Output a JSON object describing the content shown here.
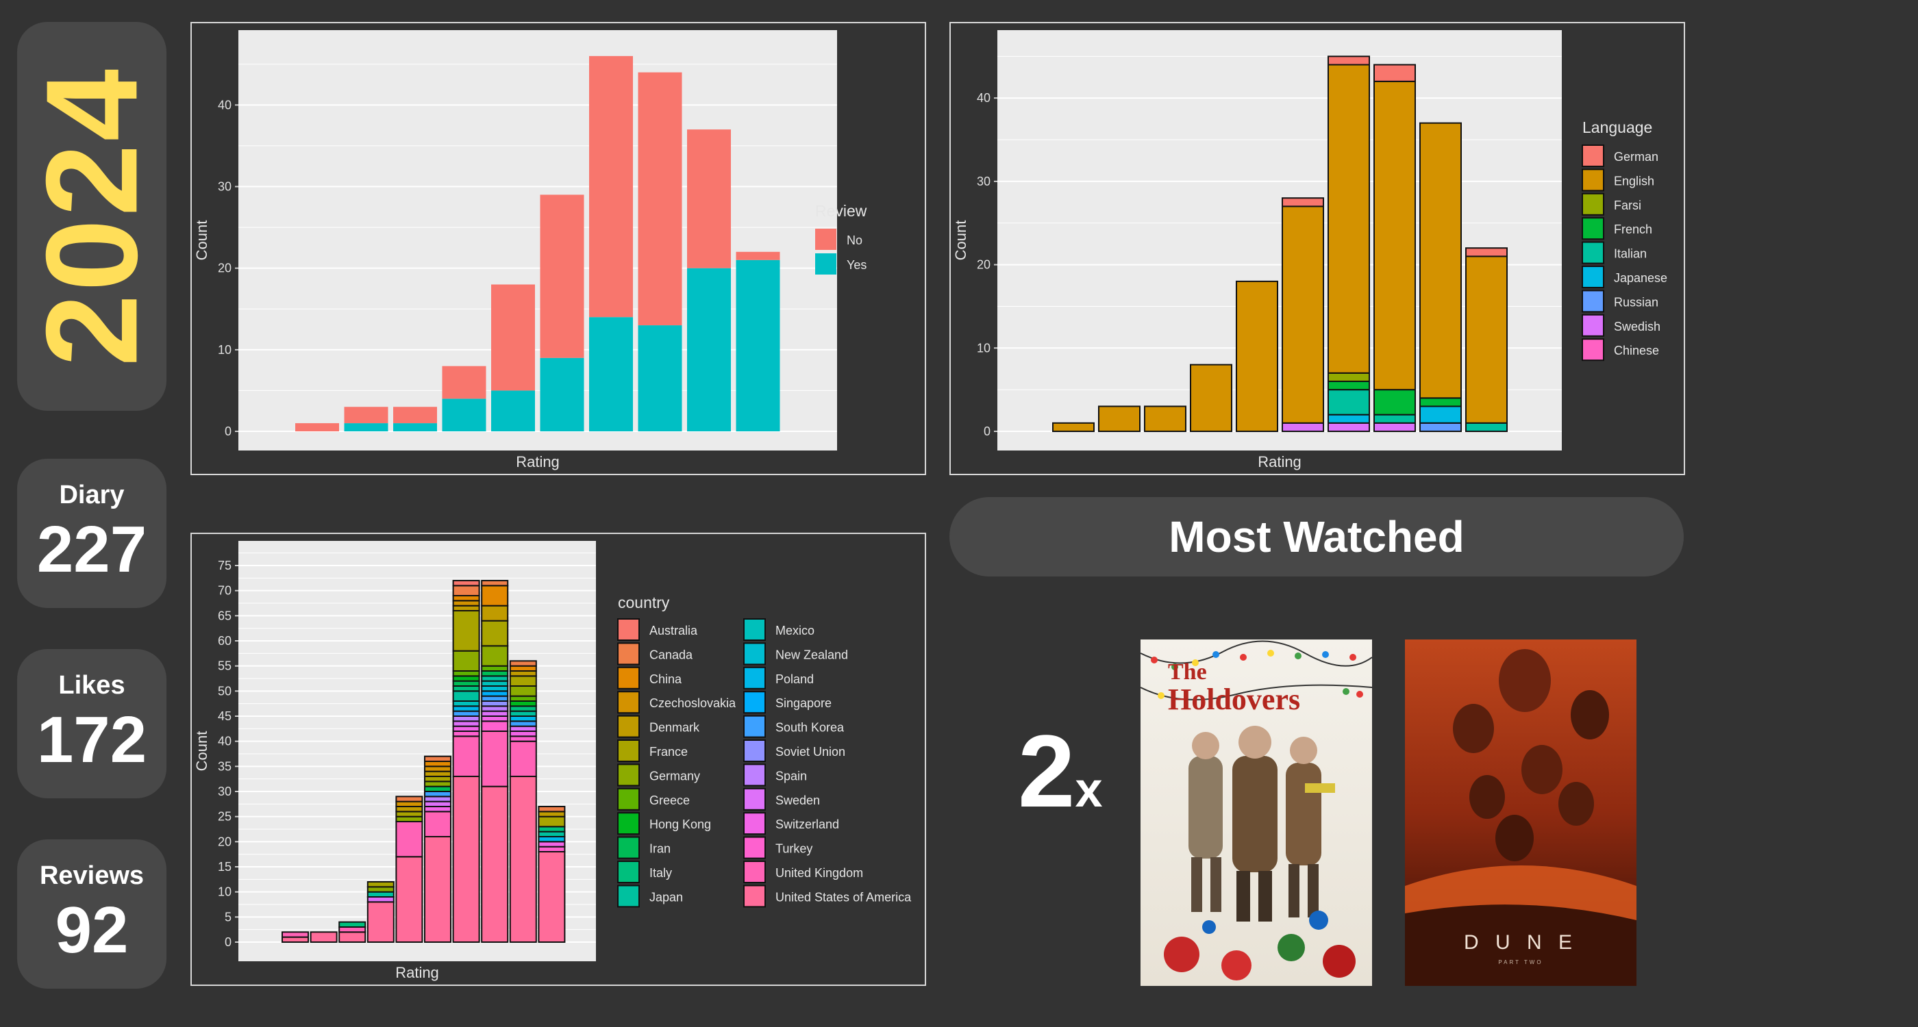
{
  "year": "2024",
  "stats": [
    {
      "label": "Diary",
      "value": "227"
    },
    {
      "label": "Likes",
      "value": "172"
    },
    {
      "label": "Reviews",
      "value": "92"
    }
  ],
  "most_watched": {
    "title": "Most Watched",
    "count_number": "2",
    "count_suffix": "x",
    "posters": [
      {
        "title_line1": "The",
        "title_line2": "Holdovers"
      },
      {
        "title": "D U N E",
        "subtitle": "PART TWO"
      }
    ]
  },
  "chart_data": [
    {
      "type": "bar",
      "stacked": true,
      "xlabel": "Rating",
      "ylabel": "Count",
      "ylim": [
        0,
        48
      ],
      "yticks": [
        0,
        10,
        20,
        30,
        40
      ],
      "legend": {
        "title": "Review",
        "placement": "right"
      },
      "series": [
        {
          "name": "No",
          "color": "#F8766D",
          "values": [
            1,
            2,
            2,
            4,
            13,
            20,
            32,
            31,
            17,
            1
          ]
        },
        {
          "name": "Yes",
          "color": "#00BFC4",
          "values": [
            0,
            1,
            1,
            4,
            5,
            9,
            14,
            13,
            20,
            21
          ]
        }
      ]
    },
    {
      "type": "bar",
      "stacked": true,
      "xlabel": "Rating",
      "ylabel": "Count",
      "ylim": [
        0,
        47
      ],
      "yticks": [
        0,
        10,
        20,
        30,
        40
      ],
      "legend": {
        "title": "Language",
        "placement": "right"
      },
      "series": [
        {
          "name": "German",
          "color": "#F8766D",
          "values": [
            0,
            0,
            0,
            0,
            0,
            1,
            1,
            2,
            0,
            1
          ]
        },
        {
          "name": "English",
          "color": "#D39200",
          "values": [
            1,
            3,
            3,
            8,
            18,
            26,
            37,
            37,
            33,
            20
          ]
        },
        {
          "name": "Farsi",
          "color": "#93AA00",
          "values": [
            0,
            0,
            0,
            0,
            0,
            0,
            1,
            0,
            0,
            0
          ]
        },
        {
          "name": "French",
          "color": "#00BA38",
          "values": [
            0,
            0,
            0,
            0,
            0,
            0,
            1,
            3,
            1,
            0
          ]
        },
        {
          "name": "Italian",
          "color": "#00C19F",
          "values": [
            0,
            0,
            0,
            0,
            0,
            0,
            3,
            1,
            0,
            1
          ]
        },
        {
          "name": "Japanese",
          "color": "#00B9E3",
          "values": [
            0,
            0,
            0,
            0,
            0,
            0,
            1,
            0,
            2,
            0
          ]
        },
        {
          "name": "Russian",
          "color": "#619CFF",
          "values": [
            0,
            0,
            0,
            0,
            0,
            0,
            0,
            0,
            1,
            0
          ]
        },
        {
          "name": "Swedish",
          "color": "#DB72FB",
          "values": [
            0,
            0,
            0,
            0,
            0,
            1,
            1,
            1,
            0,
            0
          ]
        },
        {
          "name": "Chinese",
          "color": "#FF61C3",
          "values": [
            0,
            0,
            0,
            0,
            0,
            0,
            0,
            0,
            0,
            0
          ]
        }
      ]
    },
    {
      "type": "bar",
      "stacked": true,
      "xlabel": "Rating",
      "ylabel": "Count",
      "ylim": [
        0,
        78
      ],
      "yticks": [
        0,
        5,
        10,
        15,
        20,
        25,
        30,
        35,
        40,
        45,
        50,
        55,
        60,
        65,
        70,
        75
      ],
      "legend": {
        "title": "country",
        "placement": "right",
        "columns": 2
      },
      "series": [
        {
          "name": "Australia",
          "color": "#F8766D",
          "values": [
            0,
            0,
            0,
            0,
            0,
            0,
            1,
            0,
            0,
            0
          ]
        },
        {
          "name": "Canada",
          "color": "#EF7F49",
          "values": [
            0,
            0,
            0,
            0,
            1,
            1,
            2,
            1,
            1,
            1
          ]
        },
        {
          "name": "China",
          "color": "#E38900",
          "values": [
            0,
            0,
            0,
            0,
            0,
            1,
            1,
            4,
            1,
            0
          ]
        },
        {
          "name": "Czechoslovakia",
          "color": "#D39200",
          "values": [
            0,
            0,
            0,
            0,
            1,
            1,
            1,
            0,
            0,
            0
          ]
        },
        {
          "name": "Denmark",
          "color": "#C09B00",
          "values": [
            0,
            0,
            0,
            0,
            1,
            1,
            1,
            3,
            1,
            1
          ]
        },
        {
          "name": "France",
          "color": "#A9A400",
          "values": [
            0,
            0,
            0,
            1,
            1,
            1,
            8,
            5,
            2,
            2
          ]
        },
        {
          "name": "Germany",
          "color": "#8CAB00",
          "values": [
            0,
            0,
            0,
            1,
            1,
            1,
            4,
            4,
            2,
            0
          ]
        },
        {
          "name": "Greece",
          "color": "#5FB200",
          "values": [
            0,
            0,
            0,
            0,
            0,
            0,
            1,
            1,
            1,
            0
          ]
        },
        {
          "name": "Hong Kong",
          "color": "#00B81F",
          "values": [
            0,
            0,
            0,
            0,
            0,
            0,
            1,
            0,
            1,
            0
          ]
        },
        {
          "name": "Iran",
          "color": "#00BC56",
          "values": [
            0,
            0,
            0,
            0,
            0,
            1,
            1,
            1,
            0,
            0
          ]
        },
        {
          "name": "Italy",
          "color": "#00BF7D",
          "values": [
            0,
            0,
            1,
            0,
            0,
            0,
            1,
            0,
            1,
            1
          ]
        },
        {
          "name": "Japan",
          "color": "#00C19F",
          "values": [
            0,
            0,
            0,
            1,
            0,
            0,
            2,
            1,
            1,
            1
          ]
        },
        {
          "name": "Mexico",
          "color": "#00C0BB",
          "values": [
            0,
            0,
            0,
            0,
            0,
            0,
            1,
            1,
            0,
            0
          ]
        },
        {
          "name": "New Zealand",
          "color": "#00BDD2",
          "values": [
            0,
            0,
            0,
            0,
            0,
            0,
            0,
            1,
            0,
            0
          ]
        },
        {
          "name": "Poland",
          "color": "#00B7E8",
          "values": [
            0,
            0,
            0,
            0,
            0,
            0,
            1,
            0,
            1,
            1
          ]
        },
        {
          "name": "Singapore",
          "color": "#00AEFA",
          "values": [
            0,
            0,
            0,
            0,
            0,
            0,
            0,
            1,
            0,
            0
          ]
        },
        {
          "name": "South Korea",
          "color": "#3DA1FF",
          "values": [
            0,
            0,
            0,
            0,
            0,
            1,
            1,
            1,
            1,
            0
          ]
        },
        {
          "name": "Soviet Union",
          "color": "#8F91FF",
          "values": [
            0,
            0,
            0,
            0,
            0,
            0,
            0,
            1,
            0,
            0
          ]
        },
        {
          "name": "Spain",
          "color": "#BE80FF",
          "values": [
            0,
            0,
            0,
            0,
            0,
            1,
            1,
            1,
            0,
            0
          ]
        },
        {
          "name": "Sweden",
          "color": "#DE71F9",
          "values": [
            0,
            0,
            0,
            1,
            0,
            1,
            1,
            1,
            1,
            0
          ]
        },
        {
          "name": "Switzerland",
          "color": "#F265E7",
          "values": [
            0,
            0,
            0,
            0,
            0,
            1,
            1,
            1,
            1,
            1
          ]
        },
        {
          "name": "Turkey",
          "color": "#FE61CF",
          "values": [
            0,
            0,
            0,
            0,
            0,
            0,
            1,
            2,
            1,
            1
          ]
        },
        {
          "name": "United Kingdom",
          "color": "#FF63B6",
          "values": [
            1,
            0,
            1,
            0,
            7,
            5,
            8,
            11,
            7,
            0
          ]
        },
        {
          "name": "United States of America",
          "color": "#FF6C9A",
          "values": [
            1,
            2,
            2,
            8,
            17,
            21,
            33,
            31,
            33,
            18
          ]
        }
      ]
    }
  ]
}
